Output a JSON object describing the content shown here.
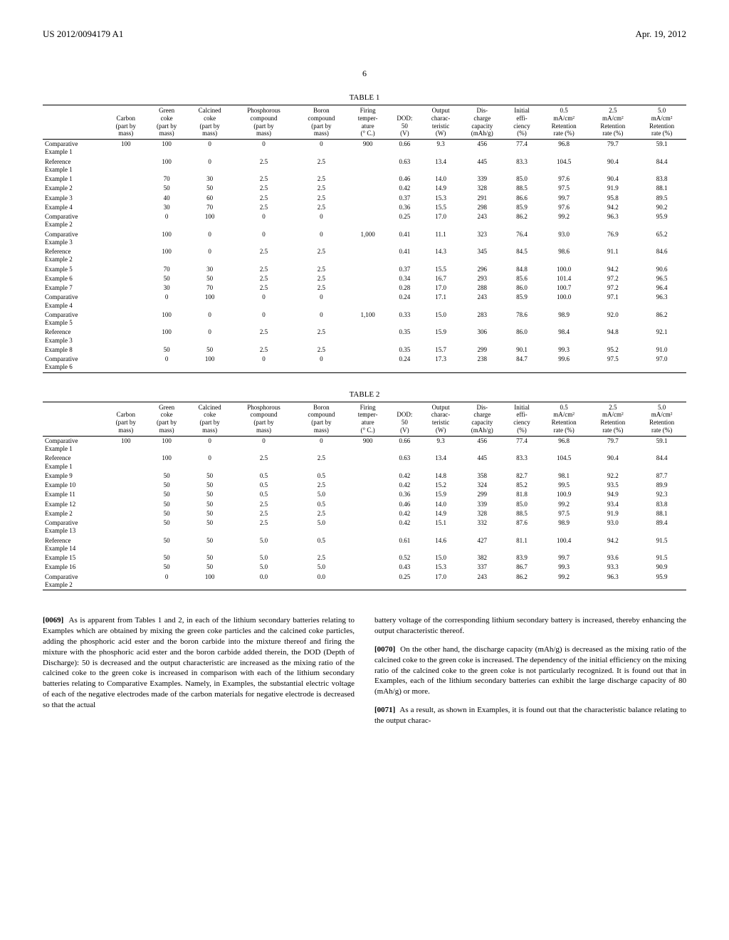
{
  "header": {
    "doc_number": "US 2012/0094179 A1",
    "date": "Apr. 19, 2012"
  },
  "page_number": "6",
  "tables": {
    "t1": {
      "label": "TABLE 1",
      "columns": [
        "",
        "Carbon\n(part by\nmass)",
        "Green\ncoke\n(part by\nmass)",
        "Calcined\ncoke\n(part by\nmass)",
        "Phosphorous\ncompound\n(part by\nmass)",
        "Boron\ncompound\n(part by\nmass)",
        "Firing\ntemper-\nature\n(° C.)",
        "DOD:\n50\n(V)",
        "Output\ncharac-\nteristic\n(W)",
        "Dis-\ncharge\ncapacity\n(mAh/g)",
        "Initial\neffi-\nciency\n(%)",
        "0.5\nmA/cm²\nRetention\nrate (%)",
        "2.5\nmA/cm²\nRetention\nrate (%)",
        "5.0\nmA/cm²\nRetention\nrate (%)"
      ],
      "rows": [
        [
          "Comparative\nExample 1",
          "100",
          "100",
          "0",
          "0",
          "0",
          "900",
          "0.66",
          "9.3",
          "456",
          "77.4",
          "96.8",
          "79.7",
          "59.1"
        ],
        [
          "Reference\nExample 1",
          "",
          "100",
          "0",
          "2.5",
          "2.5",
          "",
          "0.63",
          "13.4",
          "445",
          "83.3",
          "104.5",
          "90.4",
          "84.4"
        ],
        [
          "Example 1",
          "",
          "70",
          "30",
          "2.5",
          "2.5",
          "",
          "0.46",
          "14.0",
          "339",
          "85.0",
          "97.6",
          "90.4",
          "83.8"
        ],
        [
          "Example 2",
          "",
          "50",
          "50",
          "2.5",
          "2.5",
          "",
          "0.42",
          "14.9",
          "328",
          "88.5",
          "97.5",
          "91.9",
          "88.1"
        ],
        [
          "Example 3",
          "",
          "40",
          "60",
          "2.5",
          "2.5",
          "",
          "0.37",
          "15.3",
          "291",
          "86.6",
          "99.7",
          "95.8",
          "89.5"
        ],
        [
          "Example 4",
          "",
          "30",
          "70",
          "2.5",
          "2.5",
          "",
          "0.36",
          "15.5",
          "298",
          "85.9",
          "97.6",
          "94.2",
          "90.2"
        ],
        [
          "Comparative\nExample 2",
          "",
          "0",
          "100",
          "0",
          "0",
          "",
          "0.25",
          "17.0",
          "243",
          "86.2",
          "99.2",
          "96.3",
          "95.9"
        ],
        [
          "Comparative\nExample 3",
          "",
          "100",
          "0",
          "0",
          "0",
          "1,000",
          "0.41",
          "11.1",
          "323",
          "76.4",
          "93.0",
          "76.9",
          "65.2"
        ],
        [
          "Reference\nExample 2",
          "",
          "100",
          "0",
          "2.5",
          "2.5",
          "",
          "0.41",
          "14.3",
          "345",
          "84.5",
          "98.6",
          "91.1",
          "84.6"
        ],
        [
          "Example 5",
          "",
          "70",
          "30",
          "2.5",
          "2.5",
          "",
          "0.37",
          "15.5",
          "296",
          "84.8",
          "100.0",
          "94.2",
          "90.6"
        ],
        [
          "Example 6",
          "",
          "50",
          "50",
          "2.5",
          "2.5",
          "",
          "0.34",
          "16.7",
          "293",
          "85.6",
          "101.4",
          "97.2",
          "96.5"
        ],
        [
          "Example 7",
          "",
          "30",
          "70",
          "2.5",
          "2.5",
          "",
          "0.28",
          "17.0",
          "288",
          "86.0",
          "100.7",
          "97.2",
          "96.4"
        ],
        [
          "Comparative\nExample 4",
          "",
          "0",
          "100",
          "0",
          "0",
          "",
          "0.24",
          "17.1",
          "243",
          "85.9",
          "100.0",
          "97.1",
          "96.3"
        ],
        [
          "Comparative\nExample 5",
          "",
          "100",
          "0",
          "0",
          "0",
          "1,100",
          "0.33",
          "15.0",
          "283",
          "78.6",
          "98.9",
          "92.0",
          "86.2"
        ],
        [
          "Reference\nExample 3",
          "",
          "100",
          "0",
          "2.5",
          "2.5",
          "",
          "0.35",
          "15.9",
          "306",
          "86.0",
          "98.4",
          "94.8",
          "92.1"
        ],
        [
          "Example 8",
          "",
          "50",
          "50",
          "2.5",
          "2.5",
          "",
          "0.35",
          "15.7",
          "299",
          "90.1",
          "99.3",
          "95.2",
          "91.0"
        ],
        [
          "Comparative\nExample 6",
          "",
          "0",
          "100",
          "0",
          "0",
          "",
          "0.24",
          "17.3",
          "238",
          "84.7",
          "99.6",
          "97.5",
          "97.0"
        ]
      ]
    },
    "t2": {
      "label": "TABLE 2",
      "columns": [
        "",
        "Carbon\n(part by\nmass)",
        "Green\ncoke\n(part by\nmass)",
        "Calcined\ncoke\n(part by\nmass)",
        "Phosphorous\ncompound\n(part by\nmass)",
        "Boron\ncompound\n(part by\nmass)",
        "Firing\ntemper-\nature\n(° C.)",
        "DOD:\n50\n(V)",
        "Output\ncharac-\nteristic\n(W)",
        "Dis-\ncharge\ncapacity\n(mAh/g)",
        "Initial\neffi-\nciency\n(%)",
        "0.5\nmA/cm²\nRetention\nrate (%)",
        "2.5\nmA/cm²\nRetention\nrate (%)",
        "5.0\nmA/cm²\nRetention\nrate (%)"
      ],
      "rows": [
        [
          "Comparative\nExample 1",
          "100",
          "100",
          "0",
          "0",
          "0",
          "900",
          "0.66",
          "9.3",
          "456",
          "77.4",
          "96.8",
          "79.7",
          "59.1"
        ],
        [
          "Reference\nExample 1",
          "",
          "100",
          "0",
          "2.5",
          "2.5",
          "",
          "0.63",
          "13.4",
          "445",
          "83.3",
          "104.5",
          "90.4",
          "84.4"
        ],
        [
          "Example 9",
          "",
          "50",
          "50",
          "0.5",
          "0.5",
          "",
          "0.42",
          "14.8",
          "358",
          "82.7",
          "98.1",
          "92.2",
          "87.7"
        ],
        [
          "Example 10",
          "",
          "50",
          "50",
          "0.5",
          "2.5",
          "",
          "0.42",
          "15.2",
          "324",
          "85.2",
          "99.5",
          "93.5",
          "89.9"
        ],
        [
          "Example 11",
          "",
          "50",
          "50",
          "0.5",
          "5.0",
          "",
          "0.36",
          "15.9",
          "299",
          "81.8",
          "100.9",
          "94.9",
          "92.3"
        ],
        [
          "Example 12",
          "",
          "50",
          "50",
          "2.5",
          "0.5",
          "",
          "0.46",
          "14.0",
          "339",
          "85.0",
          "99.2",
          "93.4",
          "83.8"
        ],
        [
          "Example 2",
          "",
          "50",
          "50",
          "2.5",
          "2.5",
          "",
          "0.42",
          "14.9",
          "328",
          "88.5",
          "97.5",
          "91.9",
          "88.1"
        ],
        [
          "Comparative\nExample 13",
          "",
          "50",
          "50",
          "2.5",
          "5.0",
          "",
          "0.42",
          "15.1",
          "332",
          "87.6",
          "98.9",
          "93.0",
          "89.4"
        ],
        [
          "Reference\nExample 14",
          "",
          "50",
          "50",
          "5.0",
          "0.5",
          "",
          "0.61",
          "14.6",
          "427",
          "81.1",
          "100.4",
          "94.2",
          "91.5"
        ],
        [
          "Example 15",
          "",
          "50",
          "50",
          "5.0",
          "2.5",
          "",
          "0.52",
          "15.0",
          "382",
          "83.9",
          "99.7",
          "93.6",
          "91.5"
        ],
        [
          "Example 16",
          "",
          "50",
          "50",
          "5.0",
          "5.0",
          "",
          "0.43",
          "15.3",
          "337",
          "86.7",
          "99.3",
          "93.3",
          "90.9"
        ],
        [
          "Comparative\nExample 2",
          "",
          "0",
          "100",
          "0.0",
          "0.0",
          "",
          "0.25",
          "17.0",
          "243",
          "86.2",
          "99.2",
          "96.3",
          "95.9"
        ]
      ]
    }
  },
  "body": {
    "p69_num": "[0069]",
    "p69": "As is apparent from Tables 1 and 2, in each of the lithium secondary batteries relating to Examples which are obtained by mixing the green coke particles and the calcined coke particles, adding the phosphoric acid ester and the boron carbide into the mixture thereof and firing the mixture with the phosphoric acid ester and the boron carbide added therein, the DOD (Depth of Discharge): 50 is decreased and the output characteristic are increased as the mixing ratio of the calcined coke to the green coke is increased in comparison with each of the lithium secondary batteries relating to Comparative Examples. Namely, in Examples, the substantial electric voltage of each of the negative electrodes made of the carbon materials for negative electrode is decreased so that the actual",
    "p69b": "battery voltage of the corresponding lithium secondary battery is increased, thereby enhancing the output characteristic thereof.",
    "p70_num": "[0070]",
    "p70": "On the other hand, the discharge capacity (mAh/g) is decreased as the mixing ratio of the calcined coke to the green coke is increased. The dependency of the initial efficiency on the mixing ratio of the calcined coke to the green coke is not particularly recognized. It is found out that in Examples, each of the lithium secondary batteries can exhibit the large discharge capacity of 80 (mAh/g) or more.",
    "p71_num": "[0071]",
    "p71": "As a result, as shown in Examples, it is found out that the characteristic balance relating to the output charac-"
  }
}
